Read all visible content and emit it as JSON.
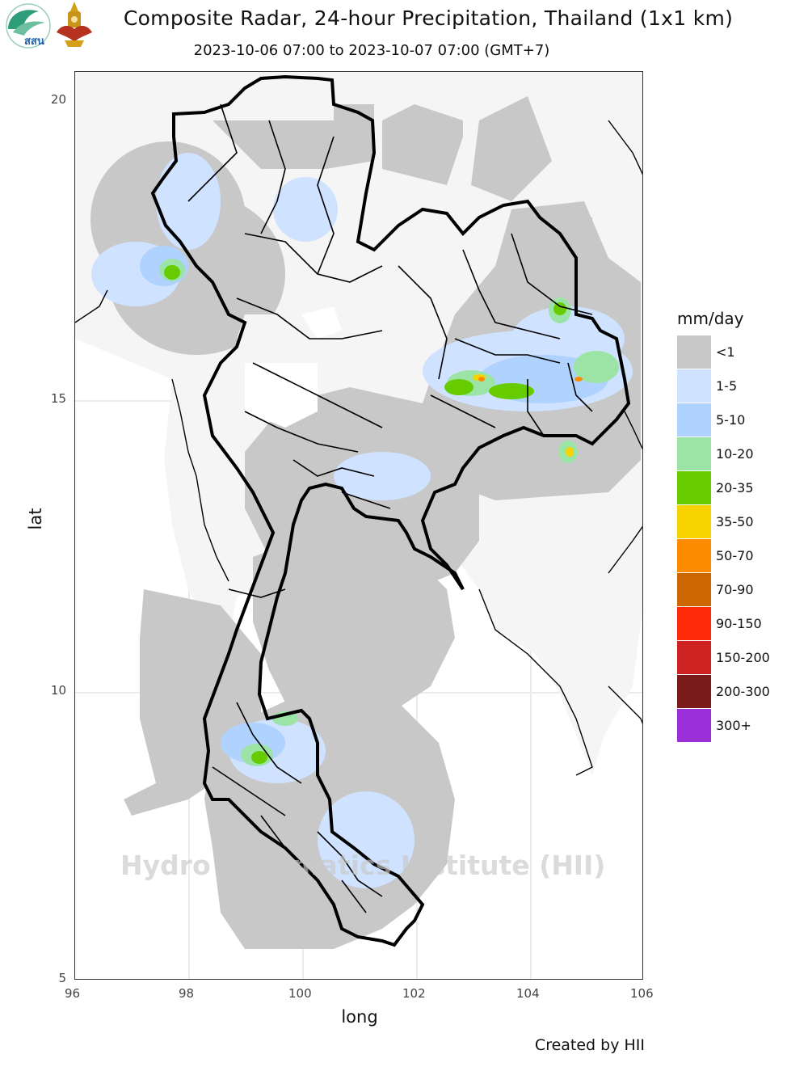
{
  "header": {
    "title": "Composite Radar, 24-hour Precipitation, Thailand (1x1 km)",
    "subtitle": "2023-10-06 07:00 to 2023-10-07 07:00 (GMT+7)"
  },
  "logos": {
    "left_logo_text": "สสน",
    "right_logo_icon": "royal-emblem-icon"
  },
  "axes": {
    "xlabel": "long",
    "ylabel": "lat",
    "x_ticks": [
      "96",
      "98",
      "100",
      "102",
      "104",
      "106"
    ],
    "y_ticks": [
      "20",
      "15",
      "10",
      "5"
    ],
    "x_range": [
      96,
      106
    ],
    "y_range": [
      5,
      20.5
    ],
    "grid": true
  },
  "legend": {
    "title": "mm/day",
    "items": [
      {
        "label": "<1",
        "color": "#c8c8c8"
      },
      {
        "label": "1-5",
        "color": "#cfe2ff"
      },
      {
        "label": "5-10",
        "color": "#b0d2ff"
      },
      {
        "label": "10-20",
        "color": "#9ce3a6"
      },
      {
        "label": "20-35",
        "color": "#66cc00"
      },
      {
        "label": "35-50",
        "color": "#f7d400"
      },
      {
        "label": "50-70",
        "color": "#ff8c00"
      },
      {
        "label": "70-90",
        "color": "#cc6600"
      },
      {
        "label": "90-150",
        "color": "#ff2a0a"
      },
      {
        "label": "150-200",
        "color": "#cc2222"
      },
      {
        "label": "200-300",
        "color": "#7a1a1a"
      },
      {
        "label": "300+",
        "color": "#9b30d9"
      }
    ]
  },
  "watermark": "Hydro Informatics Institute (HII)",
  "credit": "Created by HII"
}
